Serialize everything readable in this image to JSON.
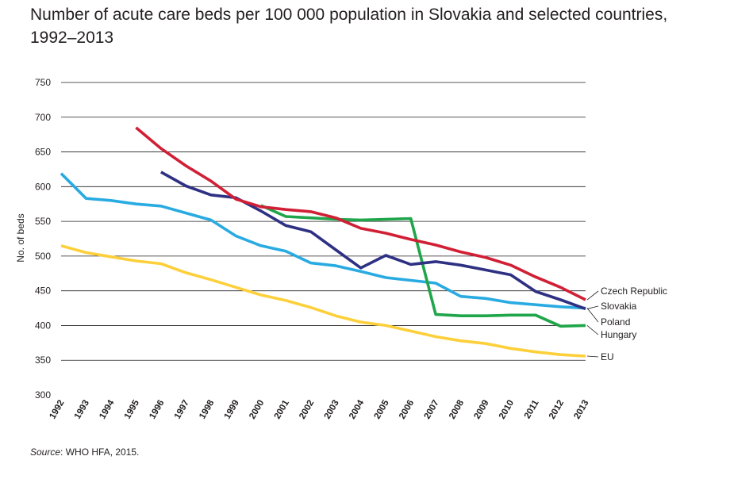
{
  "title_line1": "Number of acute care beds per 100 000 population in Slovakia and selected countries,",
  "title_line2": "1992–2013",
  "source_label": "Source",
  "source_text": ": WHO HFA, 2015.",
  "chart_data": {
    "type": "line",
    "xlabel": "",
    "ylabel": "No. of beds",
    "ylim": [
      300,
      750
    ],
    "yticks": [
      300,
      350,
      400,
      450,
      500,
      550,
      600,
      650,
      700,
      750
    ],
    "grid": true,
    "legend": "right, labels at line ends",
    "categories": [
      "1992",
      "1993",
      "1994",
      "1995",
      "1996",
      "1997",
      "1998",
      "1999",
      "2000",
      "2001",
      "2002",
      "2003",
      "2004",
      "2005",
      "2006",
      "2007",
      "2008",
      "2009",
      "2010",
      "2011",
      "2012",
      "2013"
    ],
    "series": [
      {
        "name": "Czech Republic",
        "color": "#d11f35",
        "values": [
          null,
          null,
          null,
          685,
          655,
          630,
          608,
          582,
          571,
          567,
          564,
          555,
          540,
          533,
          524,
          516,
          506,
          498,
          487,
          470,
          455,
          437
        ]
      },
      {
        "name": "Slovakia",
        "color": "#2e3083",
        "values": [
          null,
          null,
          null,
          null,
          621,
          601,
          588,
          584,
          565,
          544,
          535,
          509,
          483,
          501,
          488,
          492,
          487,
          480,
          473,
          449,
          437,
          424
        ]
      },
      {
        "name": "Poland",
        "color": "#29abe2",
        "values": [
          619,
          583,
          580,
          575,
          572,
          562,
          552,
          529,
          515,
          507,
          490,
          486,
          478,
          469,
          465,
          461,
          442,
          439,
          433,
          430,
          427,
          425
        ]
      },
      {
        "name": "Hungary",
        "color": "#1fa54a",
        "values": [
          null,
          null,
          null,
          null,
          null,
          null,
          null,
          null,
          573,
          557,
          555,
          553,
          552,
          553,
          554,
          416,
          414,
          414,
          415,
          415,
          399,
          400
        ]
      },
      {
        "name": "EU",
        "color": "#fdd03b",
        "values": [
          515,
          505,
          499,
          493,
          489,
          476,
          466,
          455,
          444,
          436,
          426,
          414,
          405,
          400,
          392,
          384,
          378,
          374,
          367,
          362,
          358,
          356
        ]
      }
    ]
  }
}
